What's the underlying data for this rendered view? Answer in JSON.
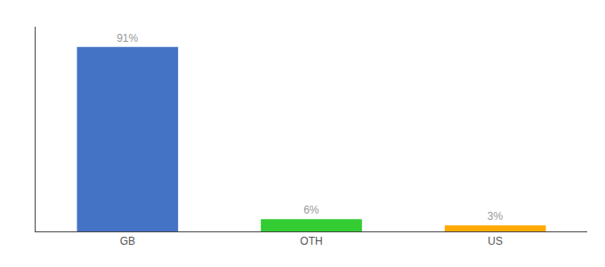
{
  "chart_data": {
    "type": "bar",
    "categories": [
      "GB",
      "OTH",
      "US"
    ],
    "values": [
      91,
      6,
      3
    ],
    "value_labels": [
      "91%",
      "6%",
      "3%"
    ],
    "colors": [
      "#4472c4",
      "#33cc33",
      "#ffaa00"
    ],
    "ylim": [
      0,
      101
    ],
    "yticks": [],
    "grid": false,
    "data_labels": true,
    "tick_labels": "x"
  }
}
